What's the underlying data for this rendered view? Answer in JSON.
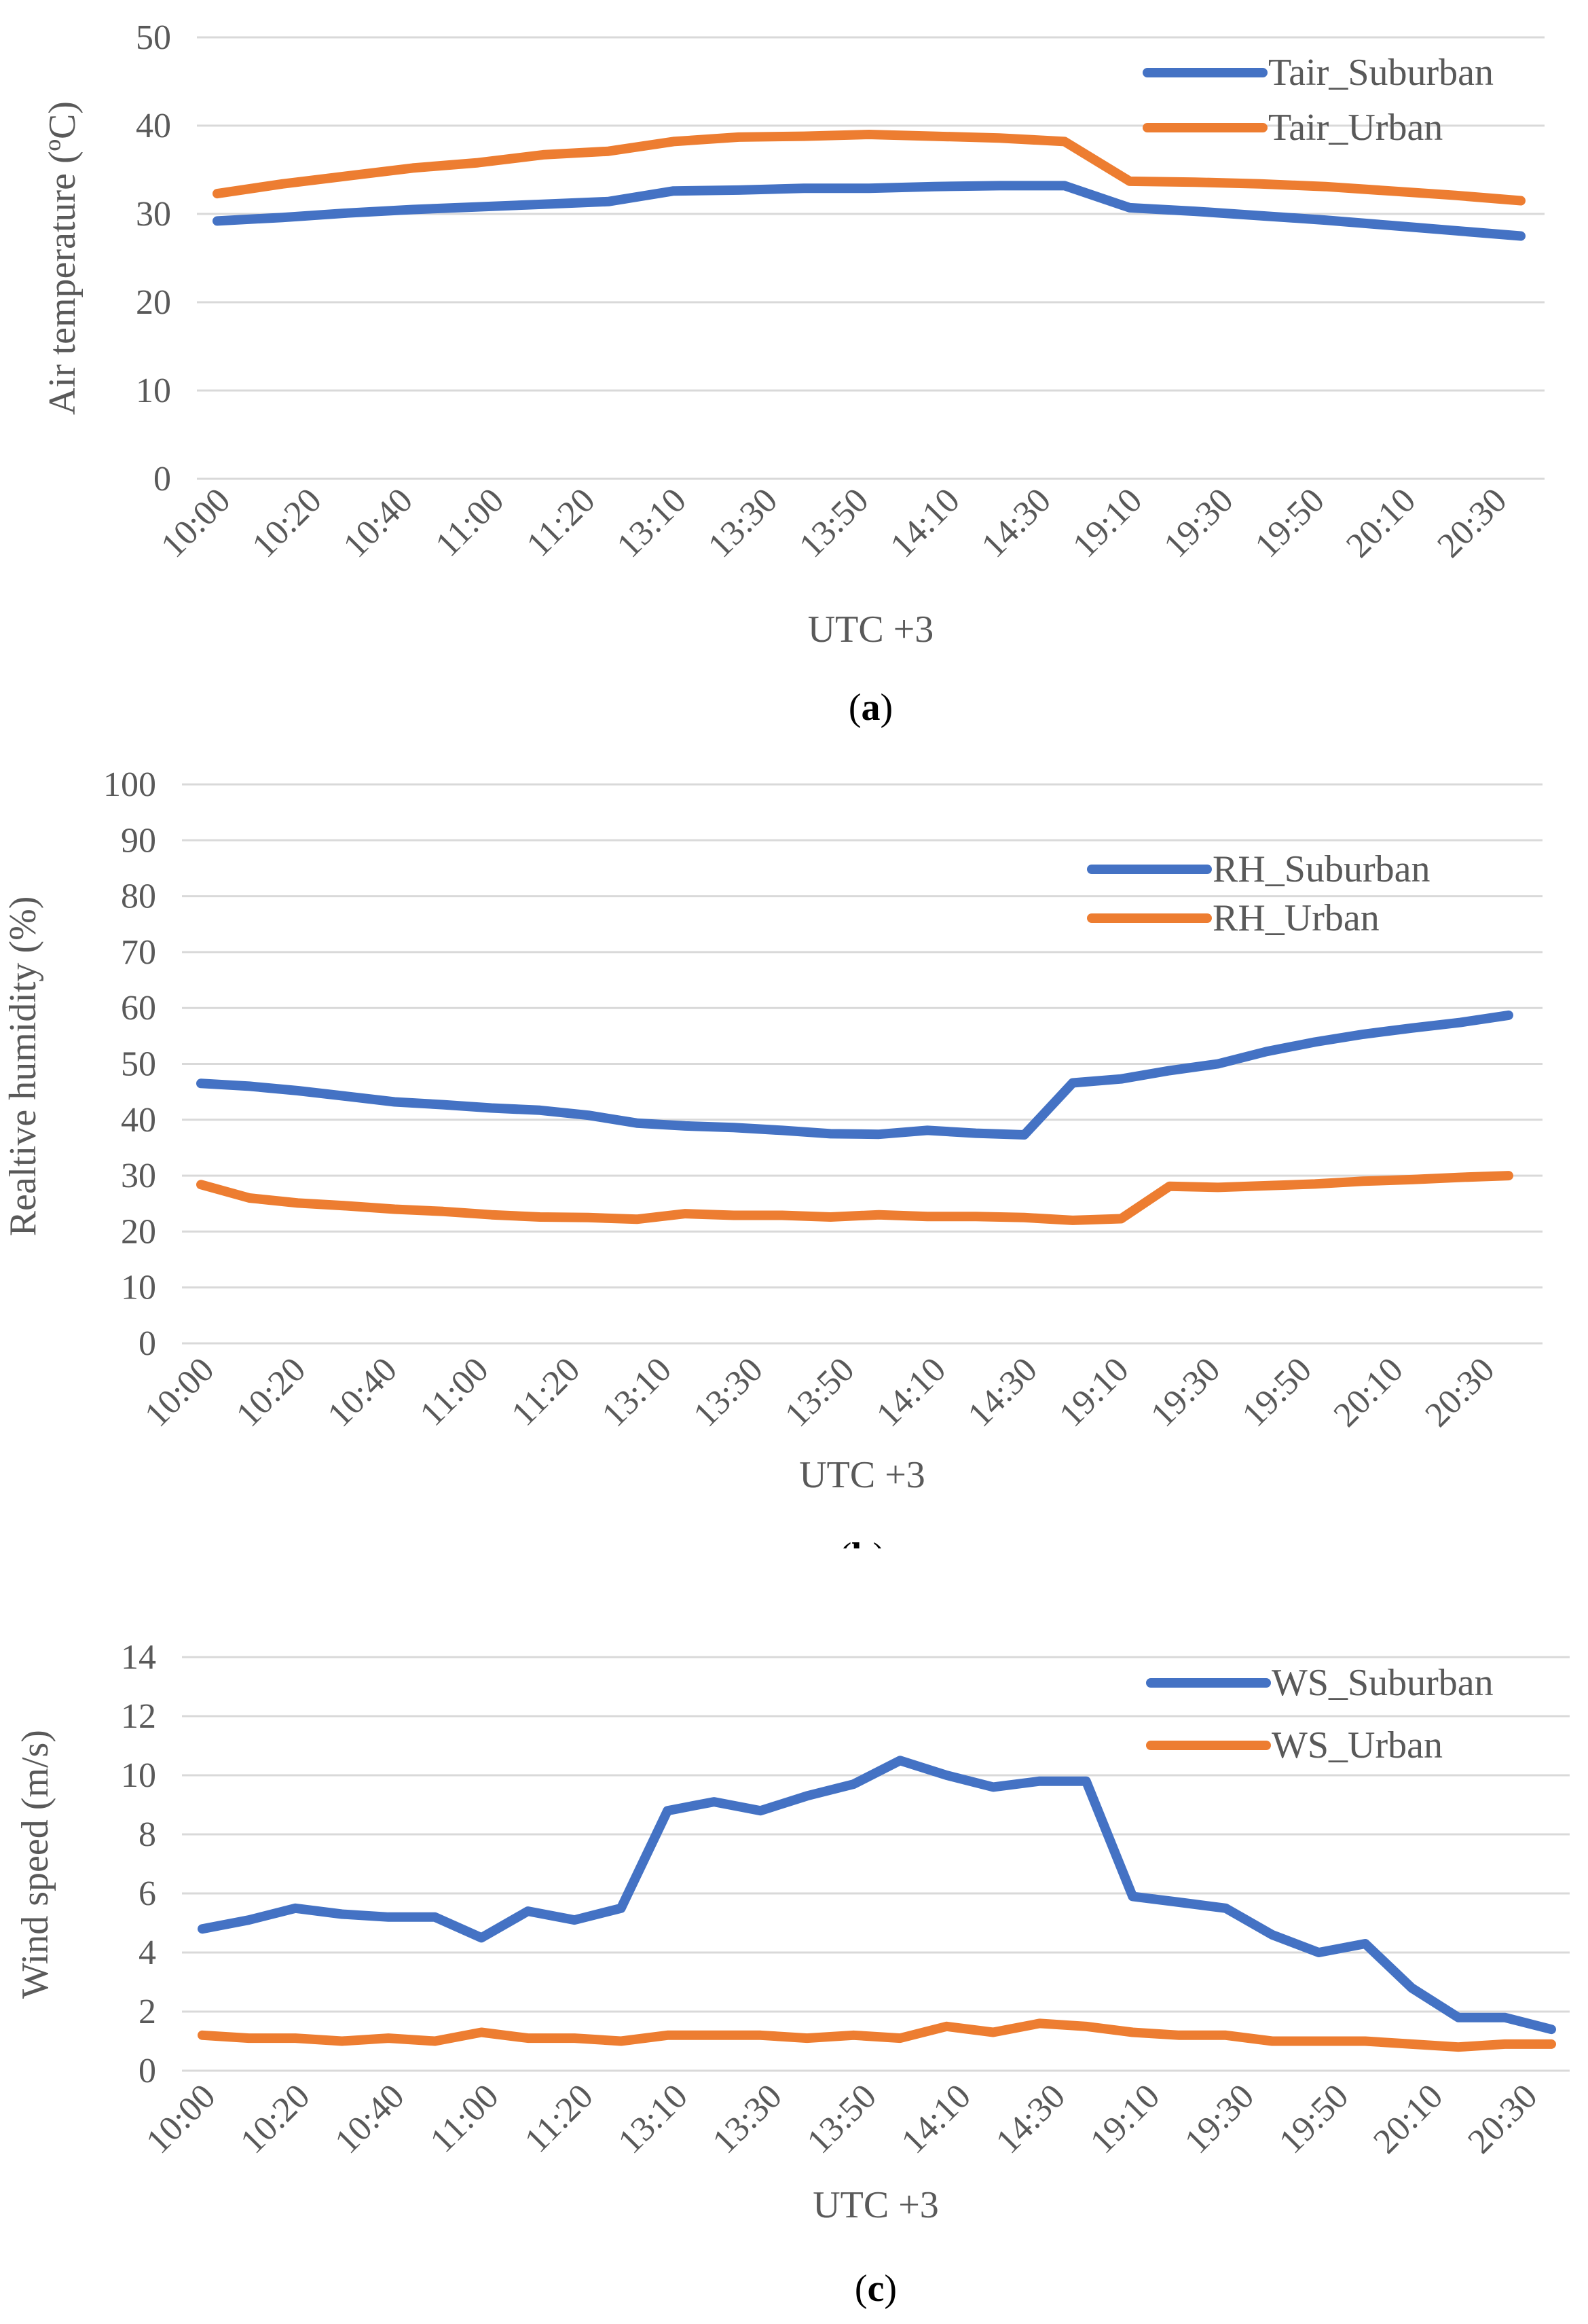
{
  "figure": {
    "x_categories": [
      "10:00",
      "10:20",
      "10:40",
      "11:00",
      "11:20",
      "13:10",
      "13:30",
      "13:50",
      "14:10",
      "14:30",
      "19:10",
      "19:30",
      "19:50",
      "20:10",
      "20:30"
    ],
    "colors": {
      "suburban": "#4472C4",
      "urban": "#ED7D31",
      "grid": "#D9D9D9",
      "text": "#595959"
    }
  },
  "chart_data": [
    {
      "id": "a",
      "type": "line",
      "panel_label": "a",
      "title": "",
      "xlabel": "UTC +3",
      "ylabel": "Air temperature (ºC)",
      "ylim": [
        0,
        50
      ],
      "ytick_step": 10,
      "grid": true,
      "legend_position": "top-right",
      "series": [
        {
          "name": "Tair_Suburban",
          "color": "#4472C4",
          "values": [
            29.2,
            29.6,
            30.1,
            30.5,
            30.8,
            31.1,
            31.4,
            32.6,
            32.7,
            32.9,
            32.9,
            33.1,
            33.2,
            33.2,
            30.7,
            30.3,
            29.8,
            29.3,
            28.7,
            28.1,
            27.5
          ]
        },
        {
          "name": "Tair_Urban",
          "color": "#ED7D31",
          "values": [
            32.3,
            33.4,
            34.3,
            35.2,
            35.8,
            36.7,
            37.1,
            38.2,
            38.7,
            38.8,
            39.0,
            38.8,
            38.6,
            38.2,
            33.7,
            33.6,
            33.4,
            33.1,
            32.6,
            32.1,
            31.5
          ]
        }
      ]
    },
    {
      "id": "b",
      "type": "line",
      "panel_label": "b",
      "title": "",
      "xlabel": "UTC +3",
      "ylabel": "Realtive humidity (%)",
      "ylim": [
        0,
        100
      ],
      "ytick_step": 10,
      "grid": true,
      "legend_position": "top-right",
      "series": [
        {
          "name": "RH_Suburban",
          "color": "#4472C4",
          "values": [
            46.5,
            46,
            45.2,
            44.2,
            43.2,
            42.7,
            42.1,
            41.7,
            40.8,
            39.4,
            38.9,
            38.6,
            38.1,
            37.5,
            37.4,
            38.1,
            37.6,
            37.3,
            46.6,
            47.3,
            48.8,
            50.0,
            52.2,
            53.9,
            55.3,
            56.4,
            57.4,
            58.7
          ]
        },
        {
          "name": "RH_Urban",
          "color": "#ED7D31",
          "values": [
            28.4,
            26,
            25.1,
            24.6,
            24.0,
            23.6,
            23.0,
            22.6,
            22.5,
            22.2,
            23.2,
            22.9,
            22.9,
            22.6,
            23.0,
            22.7,
            22.7,
            22.5,
            22.0,
            22.3,
            28.1,
            27.9,
            28.2,
            28.5,
            29.0,
            29.3,
            29.7,
            30.0
          ]
        }
      ]
    },
    {
      "id": "c",
      "type": "line",
      "panel_label": "c",
      "title": "",
      "xlabel": "UTC +3",
      "ylabel": "Wind speed (m/s)",
      "ylim": [
        0,
        14
      ],
      "ytick_step": 2,
      "grid": true,
      "legend_position": "top-right",
      "series": [
        {
          "name": "WS_Suburban",
          "color": "#4472C4",
          "values": [
            4.8,
            5.1,
            5.5,
            5.3,
            5.2,
            5.2,
            4.5,
            5.4,
            5.1,
            5.5,
            8.8,
            9.1,
            8.8,
            9.3,
            9.7,
            10.5,
            10.0,
            9.6,
            9.8,
            9.8,
            5.9,
            5.7,
            5.5,
            4.6,
            4.0,
            4.3,
            2.8,
            1.8,
            1.8,
            1.4
          ]
        },
        {
          "name": "WS_Urban",
          "color": "#ED7D31",
          "values": [
            1.2,
            1.1,
            1.1,
            1.0,
            1.1,
            1.0,
            1.3,
            1.1,
            1.1,
            1.0,
            1.2,
            1.2,
            1.2,
            1.1,
            1.2,
            1.1,
            1.5,
            1.3,
            1.6,
            1.5,
            1.3,
            1.2,
            1.2,
            1.0,
            1.0,
            1.0,
            0.9,
            0.8,
            0.9,
            0.9
          ]
        }
      ]
    }
  ]
}
